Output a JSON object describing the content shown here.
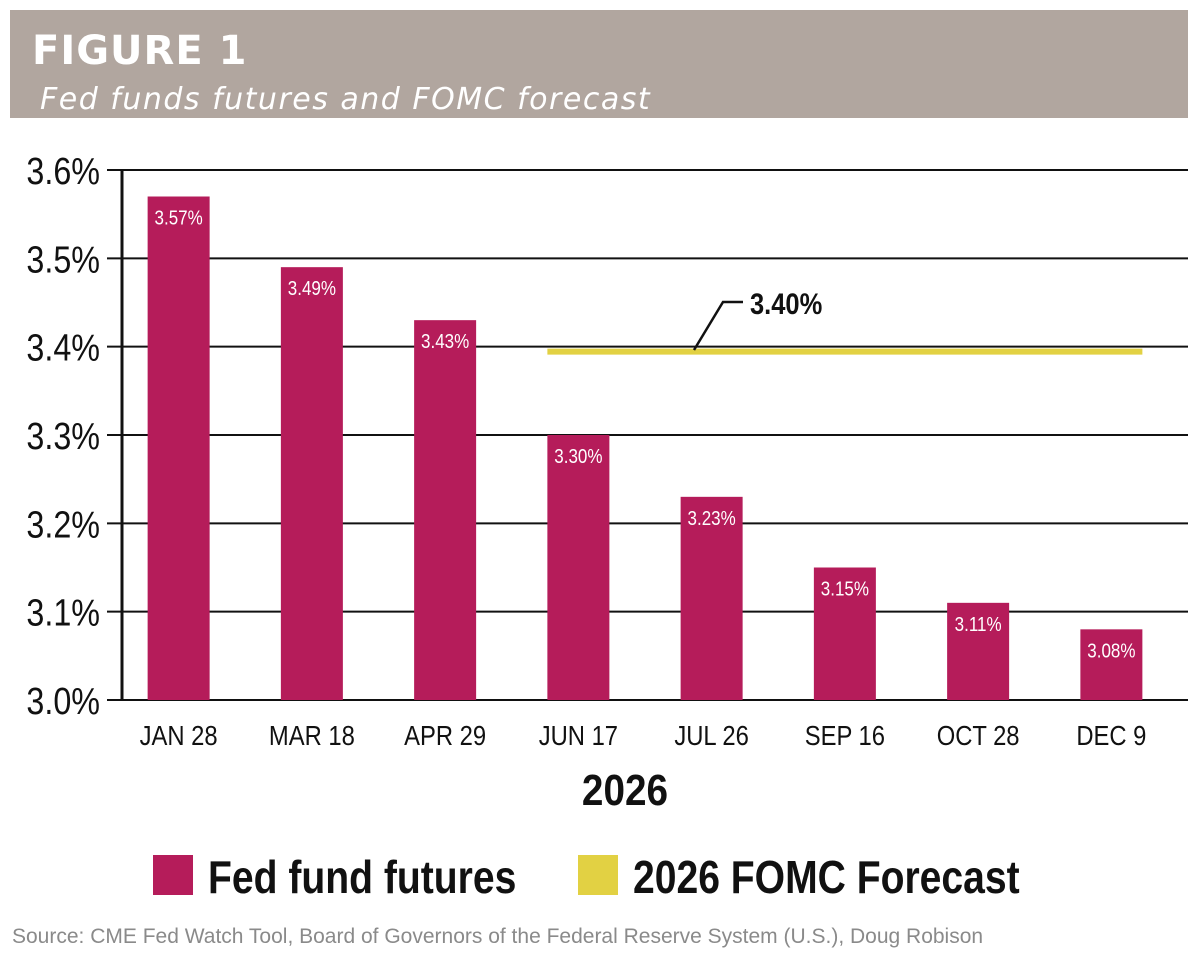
{
  "header": {
    "figure_label": "FIGURE 1",
    "subtitle": "Fed funds futures and FOMC forecast"
  },
  "chart_data": {
    "type": "bar",
    "title": "Fed funds futures and FOMC forecast",
    "categories": [
      "JAN 28",
      "MAR 18",
      "APR 29",
      "JUN 17",
      "JUL 26",
      "SEP 16",
      "OCT 28",
      "DEC 9"
    ],
    "xlabel": "2026",
    "ylabel": "",
    "ylim": [
      3.0,
      3.6
    ],
    "yticks": [
      "3.0%",
      "3.1%",
      "3.2%",
      "3.3%",
      "3.4%",
      "3.5%",
      "3.6%"
    ],
    "grid": true,
    "legend_placement": "bottom",
    "series": [
      {
        "name": "Fed fund futures",
        "type": "bar",
        "color": "#b51c5a",
        "values": [
          3.57,
          3.49,
          3.43,
          3.3,
          3.23,
          3.15,
          3.11,
          3.08
        ],
        "labels": [
          "3.57%",
          "3.49%",
          "3.43%",
          "3.30%",
          "3.23%",
          "3.15%",
          "3.11%",
          "3.08%"
        ]
      },
      {
        "name": "2026 FOMC Forecast",
        "type": "line",
        "color": "#e2d143",
        "value": 3.4,
        "from": "JUN 17",
        "to": "DEC 9",
        "annotation": "3.40%"
      }
    ]
  },
  "source": "Source: CME Fed Watch Tool, Board of Governors of the Federal Reserve System (U.S.), Doug Robison"
}
